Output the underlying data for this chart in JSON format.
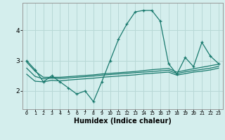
{
  "xlabel": "Humidex (Indice chaleur)",
  "bg_color": "#d4eeed",
  "grid_color": "#b8d8d6",
  "line_color": "#1a7a6e",
  "x_values": [
    0,
    1,
    2,
    3,
    4,
    5,
    6,
    7,
    8,
    9,
    10,
    11,
    12,
    13,
    14,
    15,
    16,
    17,
    18,
    19,
    20,
    21,
    22,
    23
  ],
  "main_line": [
    3.0,
    2.7,
    2.3,
    2.5,
    2.3,
    2.1,
    1.9,
    2.0,
    1.65,
    2.3,
    3.0,
    3.7,
    4.2,
    4.6,
    4.65,
    4.65,
    4.3,
    2.9,
    2.55,
    3.1,
    2.8,
    3.6,
    3.15,
    2.9
  ],
  "line2": [
    2.95,
    2.65,
    2.45,
    2.45,
    2.45,
    2.47,
    2.49,
    2.51,
    2.53,
    2.56,
    2.58,
    2.6,
    2.62,
    2.64,
    2.67,
    2.7,
    2.72,
    2.74,
    2.62,
    2.68,
    2.73,
    2.78,
    2.83,
    2.88
  ],
  "line3": [
    2.75,
    2.48,
    2.4,
    2.42,
    2.41,
    2.43,
    2.45,
    2.47,
    2.49,
    2.52,
    2.54,
    2.56,
    2.58,
    2.6,
    2.62,
    2.64,
    2.66,
    2.68,
    2.57,
    2.63,
    2.67,
    2.71,
    2.75,
    2.81
  ],
  "line4": [
    2.55,
    2.32,
    2.3,
    2.35,
    2.33,
    2.36,
    2.38,
    2.4,
    2.42,
    2.45,
    2.47,
    2.49,
    2.51,
    2.53,
    2.56,
    2.58,
    2.6,
    2.62,
    2.52,
    2.57,
    2.62,
    2.65,
    2.69,
    2.75
  ],
  "ylim": [
    1.4,
    4.9
  ],
  "yticks": [
    2,
    3,
    4
  ],
  "xlim": [
    -0.5,
    23.5
  ]
}
